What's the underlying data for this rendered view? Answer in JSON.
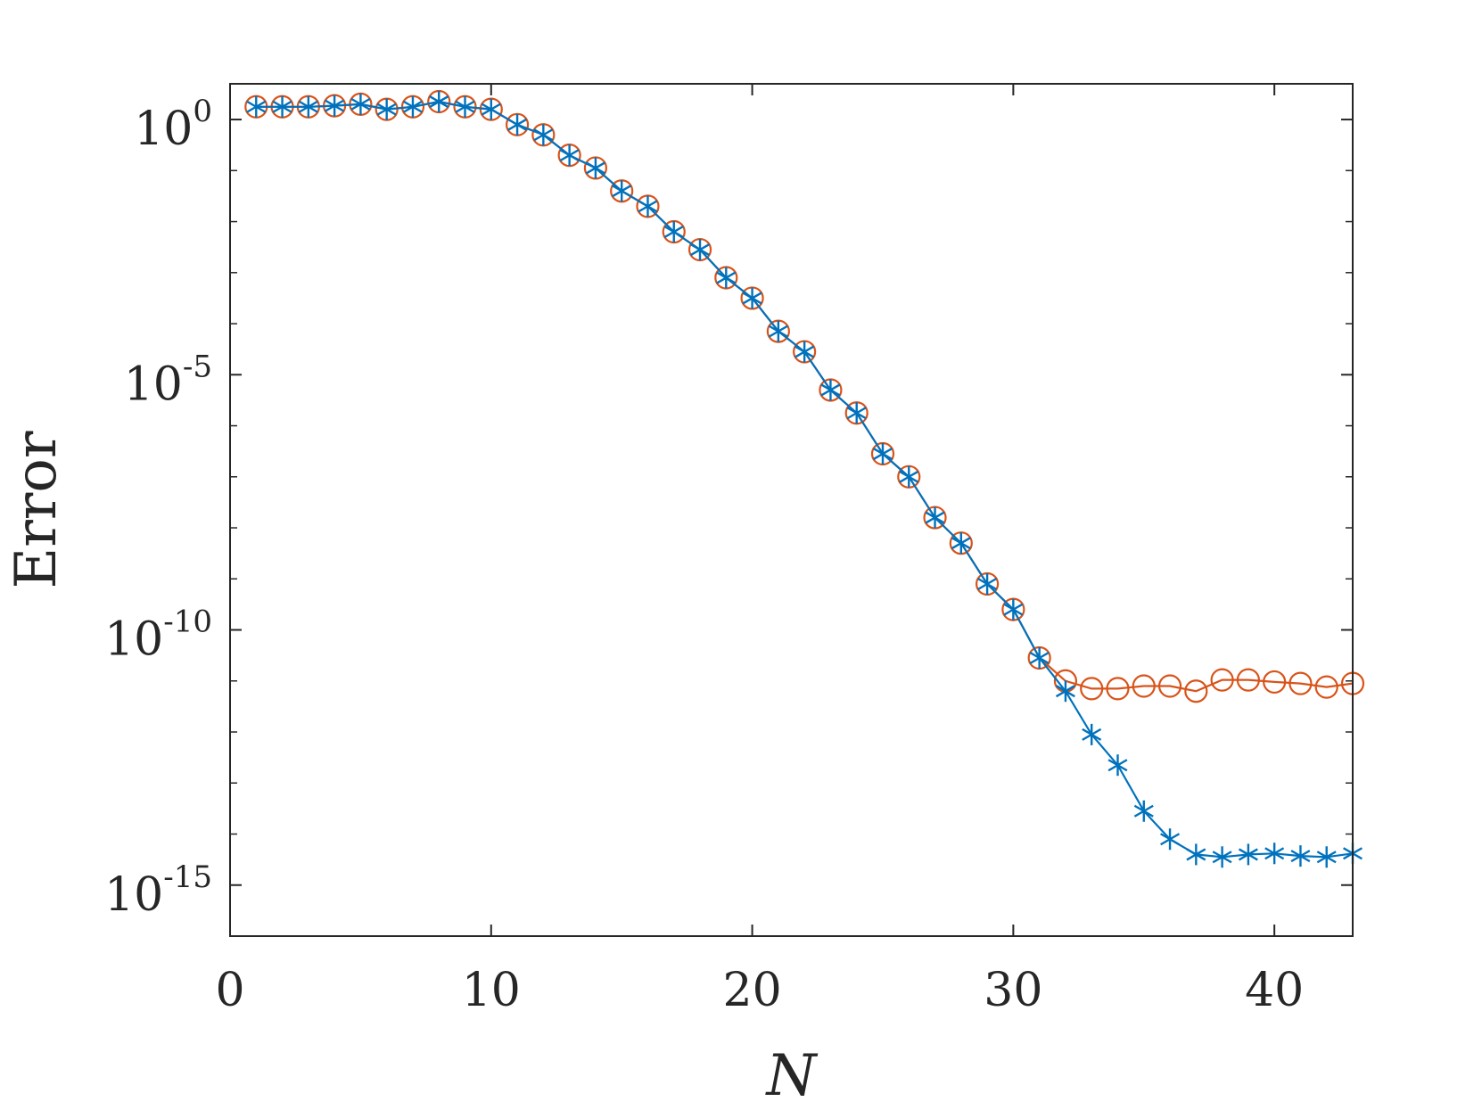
{
  "chart_data": {
    "type": "line",
    "title": "",
    "xlabel": "N",
    "ylabel": "Error",
    "xlim": [
      0,
      43
    ],
    "ylim_log10": [
      -16,
      0.7
    ],
    "yscale": "log",
    "grid": false,
    "legend": "none",
    "x_ticks": [
      0,
      10,
      20,
      30,
      40
    ],
    "x_tick_labels": [
      "0",
      "10",
      "20",
      "30",
      "40"
    ],
    "y_ticks": [
      {
        "base": "10",
        "exp": "0",
        "log10": 0
      },
      {
        "base": "10",
        "exp": "-5",
        "log10": -5
      },
      {
        "base": "10",
        "exp": "-10",
        "log10": -10
      },
      {
        "base": "10",
        "exp": "-15",
        "log10": -15
      }
    ],
    "y_minor_log10": [
      -1,
      -2,
      -3,
      -4,
      -6,
      -7,
      -8,
      -9,
      -11,
      -12,
      -13,
      -14
    ],
    "x": [
      1,
      2,
      3,
      4,
      5,
      6,
      7,
      8,
      9,
      10,
      11,
      12,
      13,
      14,
      15,
      16,
      17,
      18,
      19,
      20,
      21,
      22,
      23,
      24,
      25,
      26,
      27,
      28,
      29,
      30,
      31,
      32,
      33,
      34,
      35,
      36,
      37,
      38,
      39,
      40,
      41,
      42,
      43
    ],
    "series": [
      {
        "marker": "asterisk",
        "color": "#0072BD",
        "log10_values": [
          0.25,
          0.25,
          0.25,
          0.27,
          0.3,
          0.2,
          0.25,
          0.35,
          0.25,
          0.2,
          -0.1,
          -0.3,
          -0.7,
          -0.95,
          -1.4,
          -1.7,
          -2.2,
          -2.55,
          -3.1,
          -3.5,
          -4.15,
          -4.55,
          -5.3,
          -5.75,
          -6.55,
          -7.0,
          -7.8,
          -8.3,
          -9.1,
          -9.6,
          -10.55,
          -11.2,
          -12.05,
          -12.65,
          -13.55,
          -14.1,
          -14.4,
          -14.45,
          -14.4,
          -14.38,
          -14.43,
          -14.45,
          -14.38
        ]
      },
      {
        "marker": "circle",
        "color": "#D95319",
        "log10_values": [
          0.25,
          0.25,
          0.25,
          0.27,
          0.3,
          0.2,
          0.25,
          0.35,
          0.25,
          0.2,
          -0.1,
          -0.3,
          -0.7,
          -0.95,
          -1.4,
          -1.7,
          -2.2,
          -2.55,
          -3.1,
          -3.5,
          -4.15,
          -4.55,
          -5.3,
          -5.75,
          -6.55,
          -7.0,
          -7.8,
          -8.3,
          -9.1,
          -9.6,
          -10.55,
          -11.0,
          -11.15,
          -11.15,
          -11.1,
          -11.1,
          -11.2,
          -10.98,
          -10.98,
          -11.02,
          -11.05,
          -11.12,
          -11.05
        ]
      }
    ]
  }
}
